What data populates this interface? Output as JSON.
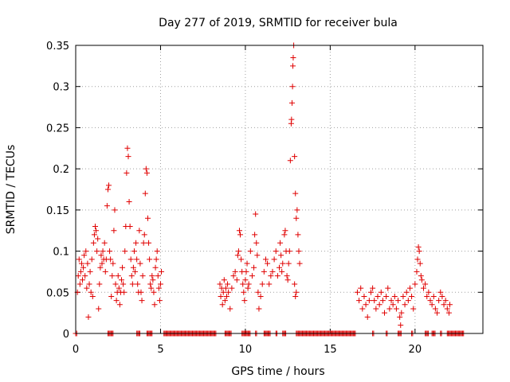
{
  "chart_data": {
    "type": "scatter",
    "title": "Day 277 of 2019, SRMTID for receiver bula",
    "xlabel": "GPS time / hours",
    "ylabel": "SRMTID / TECUs",
    "xlim": [
      0,
      24
    ],
    "ylim": [
      0,
      0.35
    ],
    "xticks": [
      "0",
      "5",
      "10",
      "15",
      "20"
    ],
    "xtick_values": [
      0,
      5,
      10,
      15,
      20
    ],
    "yticks": [
      "0",
      "0.05",
      "0.1",
      "0.15",
      "0.2",
      "0.25",
      "0.3",
      "0.35"
    ],
    "ytick_values": [
      0,
      0.05,
      0.1,
      0.15,
      0.2,
      0.25,
      0.3,
      0.35
    ],
    "grid": true,
    "marker": "+",
    "color": "#e00000",
    "series": [
      {
        "name": "SRMTID",
        "points": [
          [
            0.1,
            0.05
          ],
          [
            0.15,
            0.07
          ],
          [
            0.2,
            0.09
          ],
          [
            0.25,
            0.06
          ],
          [
            0.3,
            0.075
          ],
          [
            0.35,
            0.085
          ],
          [
            0.4,
            0.065
          ],
          [
            0.45,
            0.08
          ],
          [
            0.5,
            0.095
          ],
          [
            0.55,
            0.07
          ],
          [
            0.6,
            0.1
          ],
          [
            0.65,
            0.055
          ],
          [
            0.7,
            0.085
          ],
          [
            0.75,
            0.02
          ],
          [
            0.8,
            0.06
          ],
          [
            0.85,
            0.075
          ],
          [
            0.9,
            0.05
          ],
          [
            0.95,
            0.09
          ],
          [
            1.0,
            0.045
          ],
          [
            1.05,
            0.11
          ],
          [
            1.1,
            0.12
          ],
          [
            1.15,
            0.13
          ],
          [
            1.2,
            0.125
          ],
          [
            1.25,
            0.1
          ],
          [
            1.3,
            0.115
          ],
          [
            1.35,
            0.03
          ],
          [
            1.4,
            0.06
          ],
          [
            1.45,
            0.08
          ],
          [
            1.5,
            0.095
          ],
          [
            1.55,
            0.085
          ],
          [
            1.6,
            0.1
          ],
          [
            1.65,
            0.09
          ],
          [
            1.7,
            0.11
          ],
          [
            1.75,
            0.075
          ],
          [
            1.8,
            0.09
          ],
          [
            1.85,
            0.155
          ],
          [
            1.9,
            0.175
          ],
          [
            1.95,
            0.18
          ],
          [
            2.0,
            0.1
          ],
          [
            2.05,
            0.09
          ],
          [
            2.1,
            0.045
          ],
          [
            2.15,
            0.07
          ],
          [
            2.2,
            0.085
          ],
          [
            2.25,
            0.125
          ],
          [
            2.3,
            0.15
          ],
          [
            2.35,
            0.06
          ],
          [
            2.4,
            0.04
          ],
          [
            2.45,
            0.05
          ],
          [
            2.5,
            0.07
          ],
          [
            2.55,
            0.055
          ],
          [
            2.6,
            0.035
          ],
          [
            2.65,
            0.05
          ],
          [
            2.7,
            0.065
          ],
          [
            2.75,
            0.08
          ],
          [
            2.8,
            0.06
          ],
          [
            2.85,
            0.05
          ],
          [
            2.9,
            0.1
          ],
          [
            2.95,
            0.13
          ],
          [
            3.0,
            0.195
          ],
          [
            3.05,
            0.225
          ],
          [
            3.1,
            0.215
          ],
          [
            3.15,
            0.16
          ],
          [
            3.2,
            0.13
          ],
          [
            3.25,
            0.09
          ],
          [
            3.3,
            0.07
          ],
          [
            3.35,
            0.06
          ],
          [
            3.4,
            0.08
          ],
          [
            3.45,
            0.1
          ],
          [
            3.5,
            0.075
          ],
          [
            3.55,
            0.11
          ],
          [
            3.6,
            0.09
          ],
          [
            3.65,
            0.06
          ],
          [
            3.7,
            0.05
          ],
          [
            3.75,
            0.125
          ],
          [
            3.8,
            0.085
          ],
          [
            3.85,
            0.05
          ],
          [
            3.9,
            0.04
          ],
          [
            3.95,
            0.07
          ],
          [
            4.0,
            0.11
          ],
          [
            4.05,
            0.12
          ],
          [
            4.1,
            0.17
          ],
          [
            4.15,
            0.2
          ],
          [
            4.2,
            0.195
          ],
          [
            4.25,
            0.14
          ],
          [
            4.3,
            0.11
          ],
          [
            4.35,
            0.09
          ],
          [
            4.4,
            0.06
          ],
          [
            4.45,
            0.055
          ],
          [
            4.5,
            0.07
          ],
          [
            4.55,
            0.065
          ],
          [
            4.6,
            0.05
          ],
          [
            4.65,
            0.035
          ],
          [
            4.7,
            0.08
          ],
          [
            4.75,
            0.09
          ],
          [
            4.8,
            0.1
          ],
          [
            4.85,
            0.07
          ],
          [
            4.9,
            0.055
          ],
          [
            4.95,
            0.04
          ],
          [
            5.0,
            0.06
          ],
          [
            5.05,
            0.075
          ],
          [
            8.5,
            0.06
          ],
          [
            8.55,
            0.045
          ],
          [
            8.6,
            0.055
          ],
          [
            8.65,
            0.035
          ],
          [
            8.7,
            0.05
          ],
          [
            8.75,
            0.065
          ],
          [
            8.8,
            0.04
          ],
          [
            8.85,
            0.055
          ],
          [
            8.9,
            0.045
          ],
          [
            8.95,
            0.06
          ],
          [
            9.0,
            0.05
          ],
          [
            9.1,
            0.03
          ],
          [
            9.2,
            0.055
          ],
          [
            9.3,
            0.07
          ],
          [
            9.4,
            0.075
          ],
          [
            9.5,
            0.065
          ],
          [
            9.55,
            0.095
          ],
          [
            9.6,
            0.1
          ],
          [
            9.65,
            0.125
          ],
          [
            9.7,
            0.12
          ],
          [
            9.75,
            0.09
          ],
          [
            9.8,
            0.075
          ],
          [
            9.85,
            0.06
          ],
          [
            9.9,
            0.05
          ],
          [
            9.95,
            0.04
          ],
          [
            10.0,
            0.065
          ],
          [
            10.05,
            0.075
          ],
          [
            10.1,
            0.085
          ],
          [
            10.15,
            0.055
          ],
          [
            10.2,
            0.06
          ],
          [
            10.3,
            0.1
          ],
          [
            10.4,
            0.07
          ],
          [
            10.5,
            0.08
          ],
          [
            10.55,
            0.12
          ],
          [
            10.6,
            0.145
          ],
          [
            10.65,
            0.11
          ],
          [
            10.7,
            0.095
          ],
          [
            10.75,
            0.05
          ],
          [
            10.8,
            0.03
          ],
          [
            10.9,
            0.045
          ],
          [
            11.0,
            0.06
          ],
          [
            11.1,
            0.075
          ],
          [
            11.2,
            0.09
          ],
          [
            11.3,
            0.085
          ],
          [
            11.4,
            0.06
          ],
          [
            11.5,
            0.07
          ],
          [
            11.6,
            0.075
          ],
          [
            11.7,
            0.09
          ],
          [
            11.8,
            0.1
          ],
          [
            11.9,
            0.07
          ],
          [
            12.0,
            0.08
          ],
          [
            12.05,
            0.11
          ],
          [
            12.1,
            0.095
          ],
          [
            12.15,
            0.075
          ],
          [
            12.2,
            0.085
          ],
          [
            12.3,
            0.12
          ],
          [
            12.35,
            0.125
          ],
          [
            12.4,
            0.1
          ],
          [
            12.45,
            0.07
          ],
          [
            12.5,
            0.065
          ],
          [
            12.55,
            0.085
          ],
          [
            12.6,
            0.1
          ],
          [
            12.65,
            0.21
          ],
          [
            12.7,
            0.255
          ],
          [
            12.72,
            0.26
          ],
          [
            12.75,
            0.28
          ],
          [
            12.78,
            0.3
          ],
          [
            12.8,
            0.325
          ],
          [
            12.82,
            0.335
          ],
          [
            12.85,
            0.35
          ],
          [
            12.9,
            0.215
          ],
          [
            12.95,
            0.17
          ],
          [
            13.0,
            0.14
          ],
          [
            13.05,
            0.15
          ],
          [
            13.1,
            0.12
          ],
          [
            13.15,
            0.1
          ],
          [
            13.2,
            0.085
          ],
          [
            12.9,
            0.06
          ],
          [
            12.95,
            0.045
          ],
          [
            13.0,
            0.05
          ],
          [
            16.6,
            0.05
          ],
          [
            16.7,
            0.04
          ],
          [
            16.8,
            0.055
          ],
          [
            16.9,
            0.03
          ],
          [
            17.0,
            0.045
          ],
          [
            17.1,
            0.035
          ],
          [
            17.2,
            0.02
          ],
          [
            17.3,
            0.04
          ],
          [
            17.4,
            0.05
          ],
          [
            17.5,
            0.055
          ],
          [
            17.6,
            0.04
          ],
          [
            17.7,
            0.03
          ],
          [
            17.8,
            0.045
          ],
          [
            17.9,
            0.035
          ],
          [
            18.0,
            0.05
          ],
          [
            18.1,
            0.04
          ],
          [
            18.2,
            0.025
          ],
          [
            18.3,
            0.045
          ],
          [
            18.4,
            0.055
          ],
          [
            18.5,
            0.03
          ],
          [
            18.6,
            0.04
          ],
          [
            18.7,
            0.035
          ],
          [
            18.8,
            0.045
          ],
          [
            18.9,
            0.03
          ],
          [
            19.0,
            0.04
          ],
          [
            19.1,
            0.02
          ],
          [
            19.15,
            0.01
          ],
          [
            19.2,
            0.025
          ],
          [
            19.3,
            0.045
          ],
          [
            19.4,
            0.035
          ],
          [
            19.5,
            0.05
          ],
          [
            19.6,
            0.04
          ],
          [
            19.7,
            0.055
          ],
          [
            19.8,
            0.045
          ],
          [
            19.9,
            0.03
          ],
          [
            20.0,
            0.06
          ],
          [
            20.1,
            0.075
          ],
          [
            20.15,
            0.09
          ],
          [
            20.2,
            0.105
          ],
          [
            20.25,
            0.1
          ],
          [
            20.3,
            0.085
          ],
          [
            20.35,
            0.07
          ],
          [
            20.4,
            0.065
          ],
          [
            20.5,
            0.055
          ],
          [
            20.6,
            0.06
          ],
          [
            20.7,
            0.045
          ],
          [
            20.8,
            0.05
          ],
          [
            20.9,
            0.04
          ],
          [
            21.0,
            0.035
          ],
          [
            21.1,
            0.045
          ],
          [
            21.2,
            0.03
          ],
          [
            21.3,
            0.025
          ],
          [
            21.4,
            0.04
          ],
          [
            21.5,
            0.05
          ],
          [
            21.6,
            0.045
          ],
          [
            21.7,
            0.035
          ],
          [
            21.8,
            0.04
          ],
          [
            21.9,
            0.03
          ],
          [
            22.0,
            0.025
          ],
          [
            22.05,
            0.035
          ]
        ],
        "zero_runs": [
          [
            0.0,
            0.1
          ],
          [
            1.9,
            2.2
          ],
          [
            3.6,
            3.8
          ],
          [
            4.2,
            4.5
          ],
          [
            5.2,
            8.3
          ],
          [
            8.8,
            9.2
          ],
          [
            9.8,
            10.3
          ],
          [
            10.6,
            10.7
          ],
          [
            11.1,
            11.5
          ],
          [
            11.8,
            11.9
          ],
          [
            12.2,
            12.4
          ],
          [
            13.0,
            16.5
          ],
          [
            17.5,
            17.6
          ],
          [
            18.3,
            18.4
          ],
          [
            19.0,
            19.2
          ],
          [
            19.8,
            19.9
          ],
          [
            20.6,
            20.8
          ],
          [
            21.0,
            21.2
          ],
          [
            21.5,
            21.6
          ],
          [
            21.9,
            22.9
          ]
        ]
      }
    ]
  }
}
